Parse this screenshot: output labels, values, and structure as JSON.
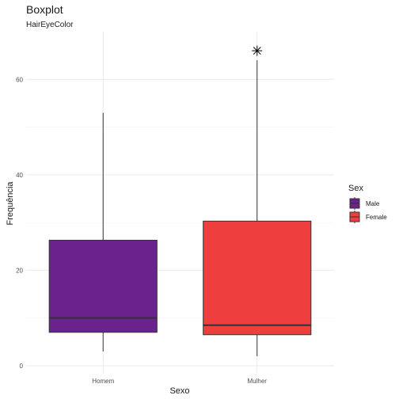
{
  "chart_data": {
    "type": "boxplot",
    "title": "Boxplot",
    "subtitle": "HairEyeColor",
    "xlabel": "Sexo",
    "ylabel": "Frequência",
    "categories": [
      "Homem",
      "Mulher"
    ],
    "ylim": [
      -1.5,
      70
    ],
    "yticks": [
      0,
      20,
      40,
      60
    ],
    "grid": true,
    "legend": {
      "title": "Sex",
      "position": "right",
      "entries": [
        {
          "label": "Male",
          "color": "#6a228c"
        },
        {
          "label": "Female",
          "color": "#ef3e3e"
        }
      ]
    },
    "boxes": [
      {
        "category": "Homem",
        "group": "Male",
        "color": "#6a228c",
        "min": 3,
        "q1": 7,
        "median": 10,
        "q3": 26.3,
        "max": 53,
        "outliers": []
      },
      {
        "category": "Mulher",
        "group": "Female",
        "color": "#ef3e3e",
        "min": 2,
        "q1": 6.5,
        "median": 8.5,
        "q3": 30.3,
        "max": 64,
        "outliers": [
          66
        ]
      }
    ]
  }
}
